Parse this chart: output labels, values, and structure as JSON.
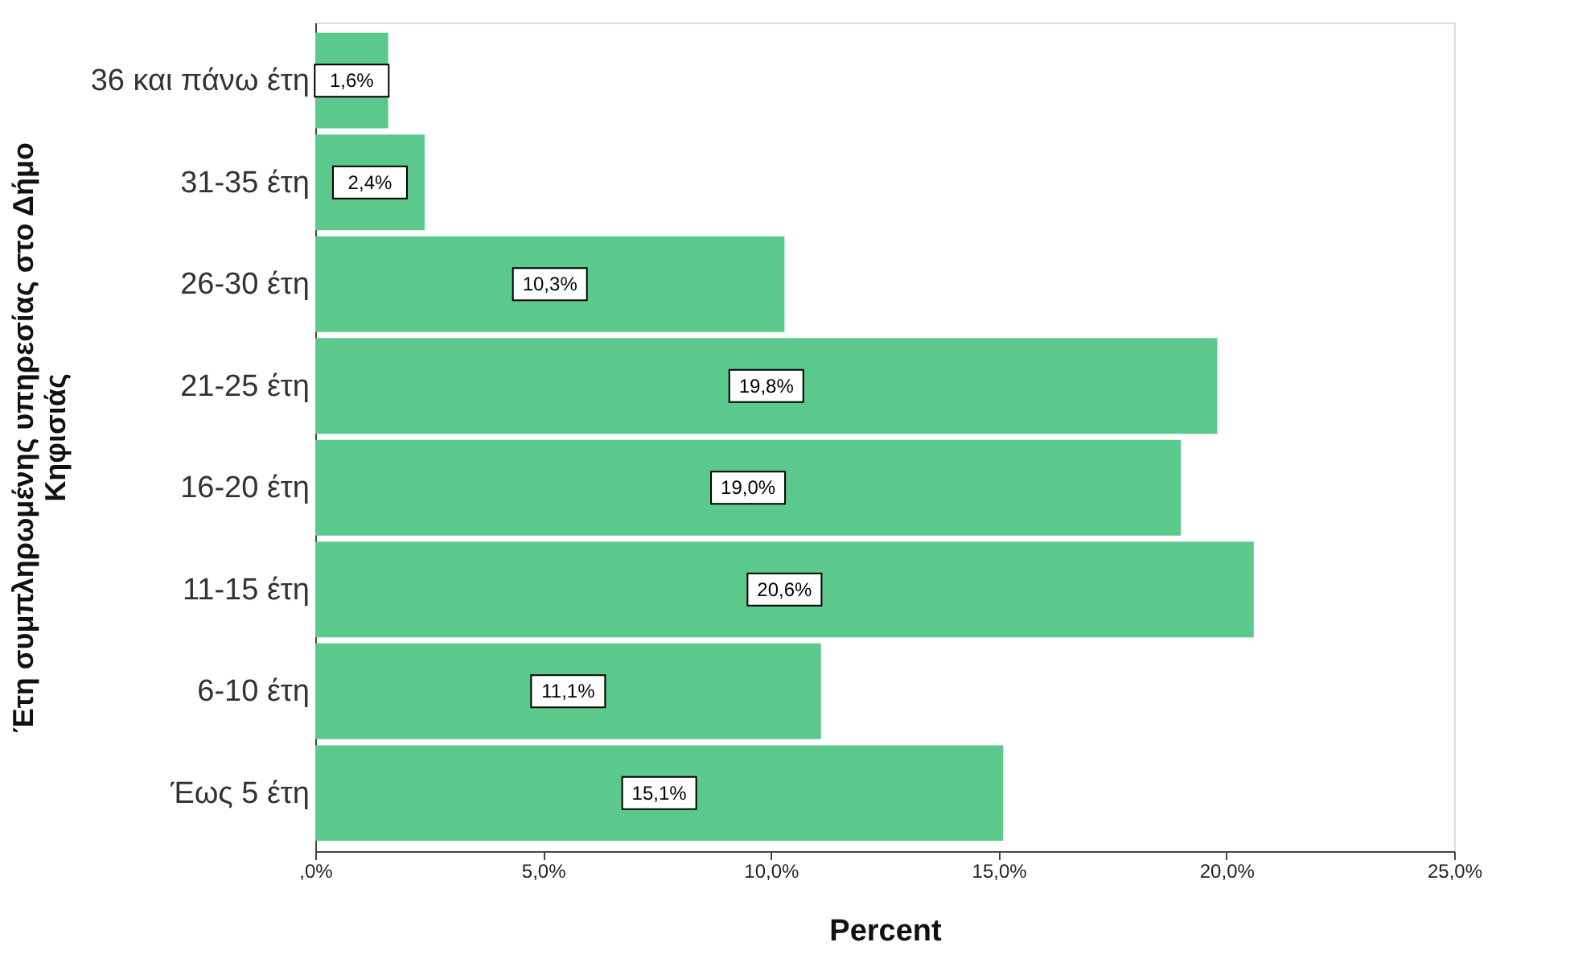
{
  "chart_data": {
    "type": "bar",
    "orientation": "horizontal",
    "xlabel": "Percent",
    "ylabel": "Έτη συμπληρωμένης υπηρεσίας στο Δήμο Κηφισιάς",
    "categories": [
      "36 και πάνω έτη",
      "31-35 έτη",
      "26-30 έτη",
      "21-25 έτη",
      "16-20 έτη",
      "11-15 έτη",
      "6-10 έτη",
      "Έως 5 έτη"
    ],
    "values": [
      1.6,
      2.4,
      10.3,
      19.8,
      19.0,
      20.6,
      11.1,
      15.1
    ],
    "value_labels": [
      "1,6%",
      "2,4%",
      "10,3%",
      "19,8%",
      "19,0%",
      "20,6%",
      "11,1%",
      "15,1%"
    ],
    "color": "#5bc98c",
    "xlim": [
      0,
      25
    ],
    "xticks": [
      {
        "value": 0,
        "label": ",0%"
      },
      {
        "value": 5,
        "label": "5,0%"
      },
      {
        "value": 10,
        "label": "10,0%"
      },
      {
        "value": 15,
        "label": "15,0%"
      },
      {
        "value": 20,
        "label": "20,0%"
      },
      {
        "value": 25,
        "label": "25,0%"
      }
    ],
    "grid": false
  }
}
